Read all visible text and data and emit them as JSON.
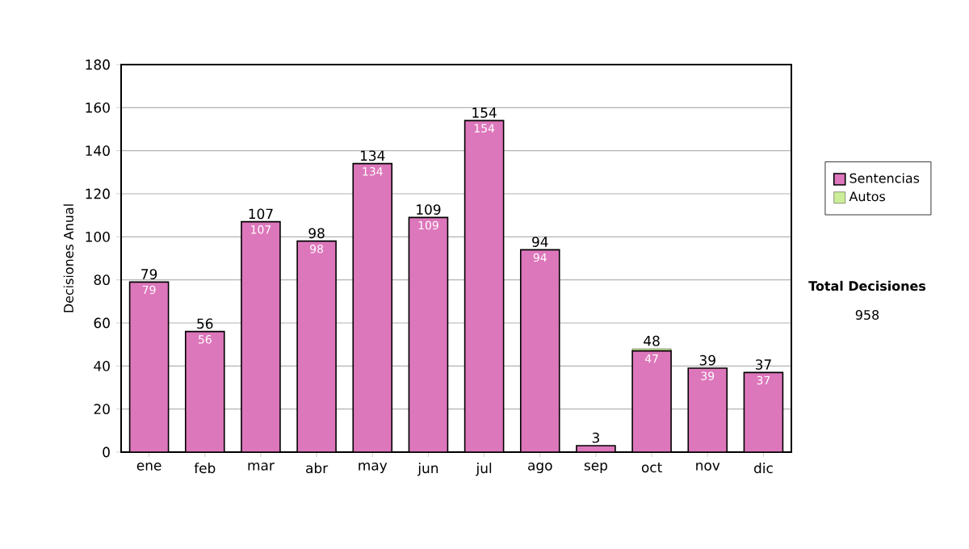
{
  "chart_data": {
    "type": "bar",
    "stacked": true,
    "ylabel": "Decisiones Anual",
    "categories": [
      "ene",
      "feb",
      "mar",
      "abr",
      "may",
      "jun",
      "jul",
      "ago",
      "sep",
      "oct",
      "nov",
      "dic"
    ],
    "series": [
      {
        "name": "Sentencias",
        "color": "#dd77bb",
        "values": [
          79,
          56,
          107,
          98,
          134,
          109,
          154,
          94,
          3,
          47,
          39,
          37
        ],
        "value_labels": [
          "79",
          "56",
          "107",
          "98",
          "134",
          "109",
          "154",
          "94",
          null,
          "47",
          "39",
          "37"
        ]
      },
      {
        "name": "Autos",
        "color": "#ccee99",
        "values": [
          0,
          0,
          0,
          0,
          0,
          0,
          0,
          0,
          0,
          1,
          0,
          0
        ]
      }
    ],
    "totals": [
      "79",
      "56",
      "107",
      "98",
      "134",
      "109",
      "154",
      "94",
      "3",
      "48",
      "39",
      "37"
    ],
    "ylim": [
      0,
      180
    ],
    "yticks": [
      0,
      20,
      40,
      60,
      80,
      100,
      120,
      140,
      160,
      180
    ],
    "grid": "y",
    "legend": "right",
    "annotations": [
      "Total Decisiones",
      "958"
    ]
  }
}
